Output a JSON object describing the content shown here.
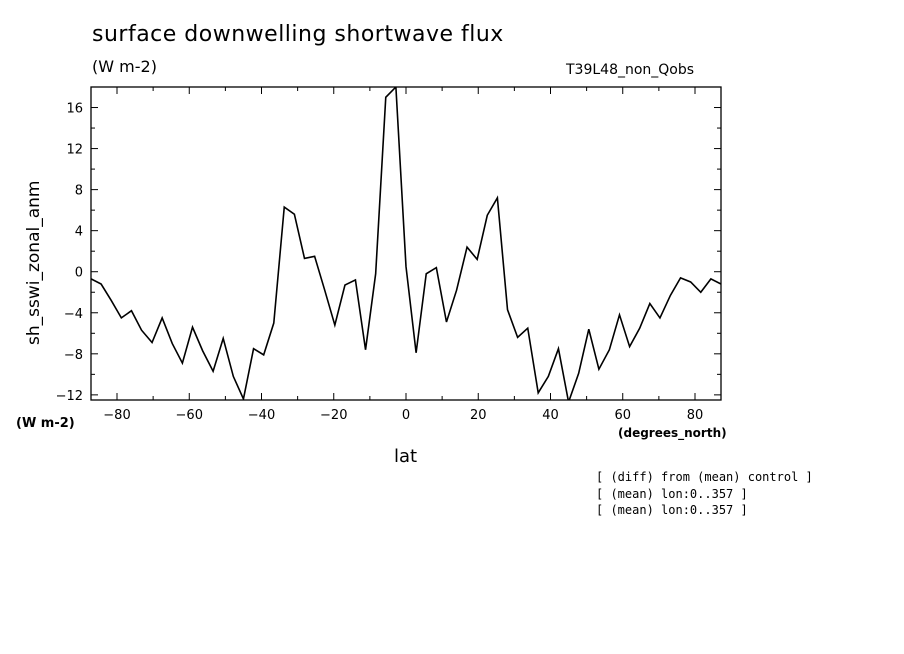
{
  "header": {
    "title": "surface downwelling shortwave flux",
    "units": "(W m-2)",
    "run": "T39L48_non_Qobs"
  },
  "axes": {
    "ylabel": "sh_sswi_zonal_anm",
    "yunits": "(W m-2)",
    "xlabel": "lat",
    "xunits": "(degrees_north)"
  },
  "notes": [
    "[ (diff) from (mean) control ]",
    "[ (mean) lon:0..357 ]",
    "[ (mean) lon:0..357 ]"
  ],
  "chart_data": {
    "type": "line",
    "title": "surface downwelling shortwave flux",
    "xlabel": "lat",
    "ylabel": "sh_sswi_zonal_anm",
    "xlim": [
      -87.2,
      87.2
    ],
    "ylim": [
      -12.5,
      18
    ],
    "xticks": [
      -80,
      -60,
      -40,
      -20,
      0,
      20,
      40,
      60,
      80
    ],
    "xtick_labels": [
      "-80",
      "-60",
      "-40",
      "-20",
      "0",
      "20",
      "40",
      "60",
      "80"
    ],
    "yticks": [
      -12,
      -8,
      -4,
      0,
      4,
      8,
      12,
      16
    ],
    "ytick_labels": [
      "-12",
      "-8",
      "-4",
      "0",
      "4",
      "8",
      "12",
      "16"
    ],
    "grid": false,
    "x": [
      -87.2,
      -84.4,
      -81.6,
      -78.8,
      -76.0,
      -73.2,
      -70.3,
      -67.5,
      -64.7,
      -61.9,
      -59.1,
      -56.3,
      -53.4,
      -50.6,
      -47.8,
      -45.0,
      -42.2,
      -39.4,
      -36.6,
      -33.7,
      -30.9,
      -28.1,
      -25.3,
      -22.5,
      -19.7,
      -16.9,
      -14.0,
      -11.2,
      -8.4,
      -5.6,
      -2.8,
      0.0,
      2.8,
      5.6,
      8.4,
      11.2,
      14.0,
      16.9,
      19.7,
      22.5,
      25.3,
      28.1,
      30.9,
      33.7,
      36.6,
      39.4,
      42.2,
      45.0,
      47.8,
      50.6,
      53.4,
      56.3,
      59.1,
      61.9,
      64.7,
      67.5,
      70.3,
      73.2,
      76.0,
      78.8,
      81.6,
      84.4,
      87.2
    ],
    "series": [
      {
        "values": [
          -0.7,
          -1.2,
          -2.8,
          -4.5,
          -3.8,
          -5.7,
          -6.9,
          -4.5,
          -7.0,
          -8.9,
          -5.4,
          -7.7,
          -9.7,
          -6.5,
          -10.2,
          -12.4,
          -7.5,
          -8.1,
          -5.0,
          6.3,
          5.6,
          1.3,
          1.5,
          -1.8,
          -5.2,
          -1.3,
          -0.8,
          -7.6,
          -0.2,
          17.0,
          18.0,
          0.5,
          -7.9,
          -0.2,
          0.4,
          -4.9,
          -1.8,
          2.4,
          1.2,
          5.5,
          7.2,
          -3.7,
          -6.4,
          -5.5,
          -11.8,
          -10.2,
          -7.5,
          -12.7,
          -9.9,
          -5.6,
          -9.5,
          -7.6,
          -4.2,
          -7.3,
          -5.5,
          -3.1,
          -4.5,
          -2.3,
          -0.6,
          -1.0,
          -2.0,
          -0.7,
          -1.2
        ]
      }
    ]
  }
}
